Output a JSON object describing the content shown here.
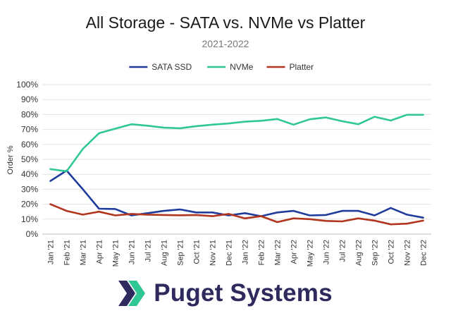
{
  "chart_data": {
    "type": "line",
    "title": "All Storage - SATA vs. NVMe vs Platter",
    "subtitle": "2021-2022",
    "ylabel": "Order %",
    "xlabel": "",
    "ylim": [
      0,
      100
    ],
    "yticks": [
      0,
      10,
      20,
      30,
      40,
      50,
      60,
      70,
      80,
      90,
      100
    ],
    "ytick_labels": [
      "0%",
      "10%",
      "20%",
      "30%",
      "40%",
      "50%",
      "60%",
      "70%",
      "80%",
      "90%",
      "100%"
    ],
    "grid": true,
    "legend_position": "top",
    "categories": [
      "Jan '21",
      "Feb '21",
      "Mar '21",
      "Apr '21",
      "May '21",
      "Jun '21",
      "Jul '21",
      "Aug '21",
      "Sep '21",
      "Oct '21",
      "Nov '21",
      "Dec '21",
      "Jan '22",
      "Feb '22",
      "Mar '22",
      "Apr '22",
      "May '22",
      "Jun '22",
      "Jul '22",
      "Aug '22",
      "Sep '22",
      "Oct '22",
      "Nov '22",
      "Dec '22"
    ],
    "series": [
      {
        "name": "SATA SSD",
        "color": "#1f3c9c",
        "values": [
          35.5,
          42.5,
          30,
          17,
          16.8,
          12.5,
          14,
          15.5,
          16.5,
          14.5,
          14.5,
          12.5,
          14,
          12,
          14.5,
          15.5,
          12.5,
          12.8,
          15.5,
          15.5,
          12.5,
          17.5,
          13,
          11
        ]
      },
      {
        "name": "NVMe",
        "color": "#2ec795",
        "values": [
          43.5,
          42,
          57,
          67.5,
          70.5,
          73.5,
          72.5,
          71.2,
          70.8,
          72.2,
          73.2,
          74,
          75.2,
          75.8,
          77,
          73.2,
          76.8,
          78,
          75.5,
          73.5,
          78.5,
          76,
          79.8,
          79.8
        ]
      },
      {
        "name": "Platter",
        "color": "#b2351e",
        "values": [
          20,
          15.5,
          13,
          15,
          12.5,
          13.5,
          13,
          12.8,
          12.6,
          12.8,
          12,
          13.5,
          10.5,
          12,
          8,
          10.5,
          10,
          8.8,
          8.5,
          10.5,
          9,
          6.5,
          7,
          9
        ]
      }
    ]
  },
  "logo": {
    "text": "Puget Systems",
    "mark_color_dark": "#2e2a5e",
    "mark_color_accent": "#2ec795"
  }
}
